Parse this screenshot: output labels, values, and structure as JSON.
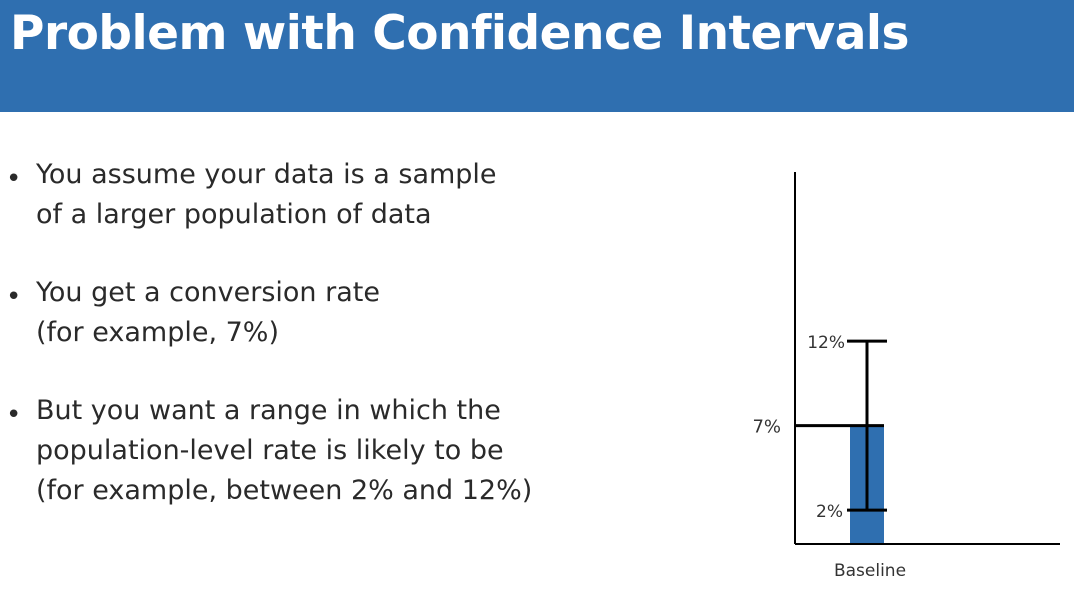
{
  "slide": {
    "title": "Problem with Confidence Intervals",
    "colors": {
      "header_bg": "#2f6fb0",
      "title_text": "#ffffff",
      "body_text": "#2a2a2a",
      "bar_fill": "#2f6fb0",
      "axis": "#000000"
    }
  },
  "bullets": [
    {
      "lines": [
        "You assume your data is a sample",
        "of a larger population of data"
      ]
    },
    {
      "lines": [
        "You get a conversion rate",
        "(for example, 7%)"
      ]
    },
    {
      "lines": [
        "But you want a range in which the",
        "population-level rate is likely to be",
        "(for example, between 2% and 12%)"
      ]
    }
  ],
  "chart_data": {
    "type": "bar",
    "categories": [
      "Baseline"
    ],
    "values": [
      7
    ],
    "error_bars": [
      {
        "low": 2,
        "high": 12
      }
    ],
    "labels": {
      "value": "7%",
      "low": "2%",
      "high": "12%"
    },
    "ylim": [
      0,
      22
    ],
    "grid": false,
    "legend": "none",
    "title": "",
    "xlabel": "",
    "ylabel": ""
  }
}
